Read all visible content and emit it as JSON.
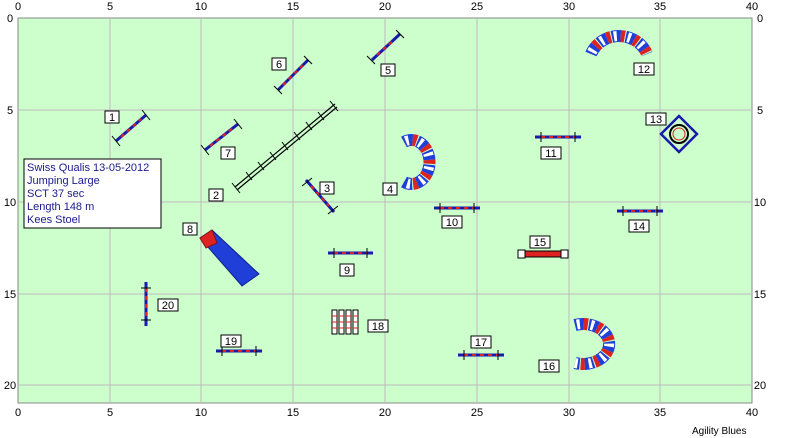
{
  "axes": {
    "x_ticks": [
      "0",
      "5",
      "10",
      "15",
      "20",
      "25",
      "30",
      "35",
      "40"
    ],
    "y_ticks": [
      "0",
      "5",
      "10",
      "15",
      "20"
    ]
  },
  "course_info": {
    "line1": "Swiss Qualis 13-05-2012",
    "line2": "Jumping Large",
    "line3": "SCT 37 sec",
    "line4": "Length 148 m",
    "line5": "Kees Stoel"
  },
  "obstacle_numbers": [
    "1",
    "2",
    "3",
    "4",
    "5",
    "6",
    "7",
    "8",
    "9",
    "10",
    "11",
    "12",
    "13",
    "14",
    "15",
    "16",
    "17",
    "18",
    "19",
    "20"
  ],
  "brand": "Agility Blues",
  "colors": {
    "field": "#ccffcc",
    "grid": "#bbbbbb",
    "jump_stand": "#1a1aaa",
    "bar_red": "#dd2222",
    "tunnel_blue": "#1f3fd8",
    "tunnel_red": "#dd2222",
    "info_text": "#1a1a8c"
  }
}
